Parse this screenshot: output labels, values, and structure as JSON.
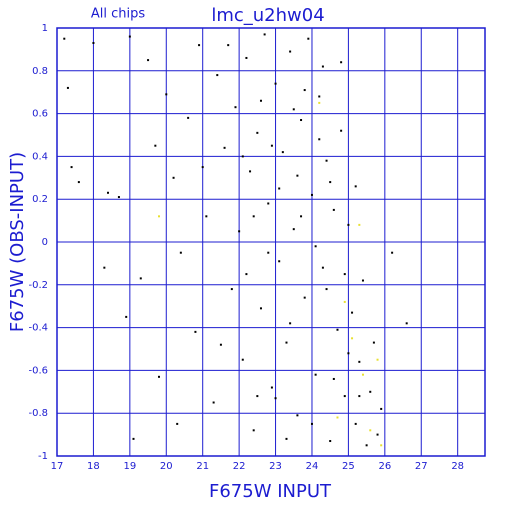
{
  "chart_data": {
    "type": "scatter",
    "title": "lmc_u2hw04",
    "subtitle": "All chips",
    "x_label": "F675W INPUT",
    "y_label": "F675W (OBS-INPUT)",
    "xlim": [
      17,
      28.75
    ],
    "ylim": [
      -1,
      1
    ],
    "xticks": [
      17,
      18,
      19,
      20,
      21,
      22,
      23,
      24,
      25,
      26,
      27,
      28
    ],
    "yticks": [
      -1,
      -0.8,
      -0.6,
      -0.4,
      -0.2,
      0,
      0.2,
      0.4,
      0.6,
      0.8,
      1
    ],
    "grid": true,
    "axis_color": "#1c1cd0",
    "series": [
      {
        "color": "#000000",
        "x": [
          17.2,
          17.3,
          17.4,
          17.6,
          18.0,
          18.3,
          18.4,
          18.7,
          18.9,
          19.0,
          19.3,
          19.5,
          19.7,
          19.8,
          20.0,
          20.2,
          20.4,
          20.6,
          20.8,
          20.9,
          21.1,
          21.3,
          21.4,
          21.6,
          21.8,
          21.9,
          22.0,
          22.1,
          22.2,
          22.3,
          22.4,
          22.5,
          22.6,
          22.7,
          22.8,
          22.9,
          23.0,
          23.1,
          23.2,
          23.3,
          23.4,
          23.5,
          23.6,
          23.7,
          23.8,
          23.9,
          24.0,
          24.1,
          24.2,
          24.3,
          24.4,
          24.5,
          24.6,
          24.7,
          24.8,
          24.9,
          25.0,
          25.1,
          25.2,
          25.3,
          25.4,
          25.5,
          25.6,
          25.7,
          25.8,
          25.9,
          26.2,
          26.6,
          25.2,
          24.8,
          22.2,
          22.6,
          23.1,
          23.3,
          23.6,
          23.8,
          24.1,
          24.3,
          24.6,
          22.9,
          21.5,
          20.3,
          19.1,
          21.0,
          22.4,
          23.4,
          24.4,
          24.9,
          25.0,
          25.3,
          22.1,
          22.8,
          23.5,
          24.2,
          23.0,
          24.0,
          21.7,
          22.5,
          23.7,
          24.5
        ],
        "values": [
          0.95,
          0.72,
          0.35,
          0.28,
          0.93,
          -0.12,
          0.23,
          0.21,
          -0.35,
          0.96,
          -0.17,
          0.85,
          0.45,
          -0.63,
          0.69,
          0.3,
          -0.05,
          0.58,
          -0.42,
          0.92,
          0.12,
          -0.75,
          0.78,
          0.44,
          -0.22,
          0.63,
          0.05,
          -0.55,
          0.86,
          0.33,
          -0.88,
          0.51,
          -0.31,
          0.97,
          0.18,
          -0.68,
          0.74,
          -0.09,
          0.42,
          -0.47,
          0.89,
          0.06,
          -0.81,
          0.57,
          -0.26,
          0.95,
          0.22,
          -0.62,
          0.68,
          -0.12,
          0.38,
          -0.93,
          0.15,
          -0.41,
          0.52,
          -0.72,
          0.08,
          -0.33,
          -0.85,
          -0.56,
          -0.18,
          -0.95,
          -0.7,
          -0.47,
          -0.9,
          -0.78,
          -0.05,
          -0.38,
          0.26,
          0.84,
          -0.15,
          0.66,
          0.25,
          -0.92,
          0.31,
          0.71,
          -0.02,
          0.82,
          -0.64,
          0.45,
          -0.48,
          -0.85,
          -0.92,
          0.35,
          0.12,
          -0.38,
          -0.22,
          -0.15,
          -0.52,
          -0.72,
          0.4,
          -0.05,
          0.62,
          0.48,
          -0.73,
          -0.85,
          0.92,
          -0.72,
          0.12,
          0.28
        ]
      },
      {
        "color": "#e8e030",
        "x": [
          25.1,
          25.4,
          25.6,
          25.8,
          24.7,
          25.9,
          24.2,
          19.8,
          25.3,
          24.9
        ],
        "values": [
          -0.45,
          -0.62,
          -0.88,
          -0.55,
          -0.82,
          -0.95,
          0.65,
          0.12,
          0.08,
          -0.28
        ]
      }
    ]
  }
}
